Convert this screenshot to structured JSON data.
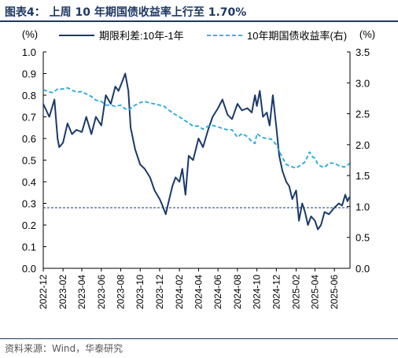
{
  "header": {
    "title": "图表4：  上周 10 年期国债收益率上行至 1.70%"
  },
  "footer": {
    "source": "资料来源：Wind，华泰研究"
  },
  "colors": {
    "spread": "#1a3a6b",
    "yield": "#22a8dd",
    "reference": "#1a3a6b",
    "text": "#000000",
    "rule": "#1f3864"
  },
  "chart_data": {
    "type": "line",
    "left_axis": {
      "unit_label": "(%)",
      "range": [
        0.0,
        1.0
      ],
      "ticks": [
        "0.0",
        "0.1",
        "0.2",
        "0.3",
        "0.4",
        "0.5",
        "0.6",
        "0.7",
        "0.8",
        "0.9",
        "1.0"
      ]
    },
    "right_axis": {
      "unit_label": "(%)",
      "range": [
        0.0,
        3.5
      ],
      "ticks": [
        "0.0",
        "0.5",
        "1.0",
        "1.5",
        "2.0",
        "2.5",
        "3.0",
        "3.5"
      ]
    },
    "x_range": [
      "2022-12-01",
      "2025-07-20"
    ],
    "x_ticks": [
      "2022-12",
      "2023-02",
      "2023-04",
      "2023-06",
      "2023-08",
      "2023-10",
      "2023-12",
      "2024-02",
      "2024-04",
      "2024-06",
      "2024-08",
      "2024-10",
      "2024-12",
      "2025-02",
      "2025-04",
      "2025-06"
    ],
    "reference_line": {
      "axis": "left",
      "value": 0.28
    },
    "grid": false,
    "legend_position": "top",
    "series": [
      {
        "name": "期限利差:10年-1年",
        "axis": "left",
        "style": "solid",
        "points": [
          [
            "2022-12-01",
            0.76
          ],
          [
            "2022-12-20",
            0.7
          ],
          [
            "2023-01-05",
            0.78
          ],
          [
            "2023-01-15",
            0.6
          ],
          [
            "2023-01-20",
            0.56
          ],
          [
            "2023-02-01",
            0.58
          ],
          [
            "2023-02-15",
            0.67
          ],
          [
            "2023-03-01",
            0.62
          ],
          [
            "2023-03-15",
            0.64
          ],
          [
            "2023-04-01",
            0.63
          ],
          [
            "2023-04-15",
            0.7
          ],
          [
            "2023-05-01",
            0.62
          ],
          [
            "2023-05-15",
            0.7
          ],
          [
            "2023-06-01",
            0.66
          ],
          [
            "2023-06-15",
            0.8
          ],
          [
            "2023-07-01",
            0.76
          ],
          [
            "2023-07-15",
            0.84
          ],
          [
            "2023-07-25",
            0.82
          ],
          [
            "2023-08-05",
            0.86
          ],
          [
            "2023-08-15",
            0.9
          ],
          [
            "2023-08-25",
            0.82
          ],
          [
            "2023-09-01",
            0.65
          ],
          [
            "2023-09-15",
            0.55
          ],
          [
            "2023-10-01",
            0.48
          ],
          [
            "2023-10-15",
            0.46
          ],
          [
            "2023-11-01",
            0.42
          ],
          [
            "2023-11-15",
            0.36
          ],
          [
            "2023-12-01",
            0.32
          ],
          [
            "2023-12-10",
            0.29
          ],
          [
            "2023-12-20",
            0.25
          ],
          [
            "2023-12-28",
            0.3
          ],
          [
            "2024-01-10",
            0.38
          ],
          [
            "2024-01-20",
            0.42
          ],
          [
            "2024-02-01",
            0.4
          ],
          [
            "2024-02-10",
            0.46
          ],
          [
            "2024-02-20",
            0.34
          ],
          [
            "2024-03-01",
            0.52
          ],
          [
            "2024-03-15",
            0.5
          ],
          [
            "2024-04-01",
            0.6
          ],
          [
            "2024-04-15",
            0.56
          ],
          [
            "2024-05-01",
            0.64
          ],
          [
            "2024-05-15",
            0.7
          ],
          [
            "2024-06-01",
            0.74
          ],
          [
            "2024-06-15",
            0.78
          ],
          [
            "2024-07-01",
            0.71
          ],
          [
            "2024-07-15",
            0.69
          ],
          [
            "2024-08-01",
            0.76
          ],
          [
            "2024-08-15",
            0.73
          ],
          [
            "2024-09-01",
            0.74
          ],
          [
            "2024-09-15",
            0.72
          ],
          [
            "2024-09-25",
            0.8
          ],
          [
            "2024-10-01",
            0.75
          ],
          [
            "2024-10-10",
            0.82
          ],
          [
            "2024-10-20",
            0.7
          ],
          [
            "2024-11-01",
            0.72
          ],
          [
            "2024-11-10",
            0.66
          ],
          [
            "2024-11-20",
            0.8
          ],
          [
            "2024-12-01",
            0.65
          ],
          [
            "2024-12-10",
            0.52
          ],
          [
            "2024-12-20",
            0.45
          ],
          [
            "2025-01-01",
            0.4
          ],
          [
            "2025-01-10",
            0.38
          ],
          [
            "2025-01-20",
            0.32
          ],
          [
            "2025-02-01",
            0.36
          ],
          [
            "2025-02-10",
            0.22
          ],
          [
            "2025-02-20",
            0.3
          ],
          [
            "2025-03-01",
            0.26
          ],
          [
            "2025-03-10",
            0.2
          ],
          [
            "2025-03-20",
            0.24
          ],
          [
            "2025-04-01",
            0.22
          ],
          [
            "2025-04-10",
            0.18
          ],
          [
            "2025-04-20",
            0.2
          ],
          [
            "2025-05-01",
            0.26
          ],
          [
            "2025-05-15",
            0.25
          ],
          [
            "2025-06-01",
            0.28
          ],
          [
            "2025-06-15",
            0.3
          ],
          [
            "2025-06-25",
            0.29
          ],
          [
            "2025-07-05",
            0.34
          ],
          [
            "2025-07-12",
            0.31
          ],
          [
            "2025-07-18",
            0.33
          ]
        ]
      },
      {
        "name": "10年期国债收益率(右)",
        "axis": "right",
        "style": "dashed",
        "points": [
          [
            "2022-12-01",
            2.89
          ],
          [
            "2022-12-15",
            2.86
          ],
          [
            "2023-01-01",
            2.84
          ],
          [
            "2023-01-15",
            2.9
          ],
          [
            "2023-02-01",
            2.9
          ],
          [
            "2023-02-15",
            2.92
          ],
          [
            "2023-03-01",
            2.88
          ],
          [
            "2023-03-15",
            2.85
          ],
          [
            "2023-04-01",
            2.86
          ],
          [
            "2023-04-15",
            2.82
          ],
          [
            "2023-05-01",
            2.78
          ],
          [
            "2023-05-15",
            2.72
          ],
          [
            "2023-06-01",
            2.7
          ],
          [
            "2023-06-15",
            2.64
          ],
          [
            "2023-07-01",
            2.64
          ],
          [
            "2023-07-15",
            2.62
          ],
          [
            "2023-08-01",
            2.64
          ],
          [
            "2023-08-15",
            2.58
          ],
          [
            "2023-08-25",
            2.56
          ],
          [
            "2023-09-15",
            2.64
          ],
          [
            "2023-10-01",
            2.68
          ],
          [
            "2023-10-15",
            2.7
          ],
          [
            "2023-11-01",
            2.67
          ],
          [
            "2023-11-15",
            2.66
          ],
          [
            "2023-12-01",
            2.64
          ],
          [
            "2023-12-15",
            2.62
          ],
          [
            "2024-01-01",
            2.55
          ],
          [
            "2024-01-15",
            2.5
          ],
          [
            "2024-02-01",
            2.45
          ],
          [
            "2024-02-15",
            2.4
          ],
          [
            "2024-03-01",
            2.35
          ],
          [
            "2024-03-15",
            2.3
          ],
          [
            "2024-04-01",
            2.3
          ],
          [
            "2024-04-15",
            2.25
          ],
          [
            "2024-05-01",
            2.3
          ],
          [
            "2024-05-15",
            2.31
          ],
          [
            "2024-06-01",
            2.29
          ],
          [
            "2024-06-15",
            2.26
          ],
          [
            "2024-07-01",
            2.24
          ],
          [
            "2024-07-15",
            2.24
          ],
          [
            "2024-08-01",
            2.12
          ],
          [
            "2024-08-15",
            2.18
          ],
          [
            "2024-09-01",
            2.13
          ],
          [
            "2024-09-15",
            2.05
          ],
          [
            "2024-09-25",
            2.02
          ],
          [
            "2024-10-01",
            2.18
          ],
          [
            "2024-10-15",
            2.12
          ],
          [
            "2024-11-01",
            2.1
          ],
          [
            "2024-11-15",
            2.09
          ],
          [
            "2024-12-01",
            2.0
          ],
          [
            "2024-12-15",
            1.84
          ],
          [
            "2025-01-01",
            1.68
          ],
          [
            "2025-01-15",
            1.65
          ],
          [
            "2025-02-01",
            1.62
          ],
          [
            "2025-02-15",
            1.67
          ],
          [
            "2025-03-01",
            1.72
          ],
          [
            "2025-03-15",
            1.88
          ],
          [
            "2025-03-25",
            1.8
          ],
          [
            "2025-04-01",
            1.78
          ],
          [
            "2025-04-10",
            1.68
          ],
          [
            "2025-04-20",
            1.65
          ],
          [
            "2025-05-01",
            1.63
          ],
          [
            "2025-05-15",
            1.7
          ],
          [
            "2025-06-01",
            1.7
          ],
          [
            "2025-06-15",
            1.66
          ],
          [
            "2025-07-01",
            1.64
          ],
          [
            "2025-07-10",
            1.65
          ],
          [
            "2025-07-18",
            1.7
          ]
        ]
      }
    ]
  }
}
